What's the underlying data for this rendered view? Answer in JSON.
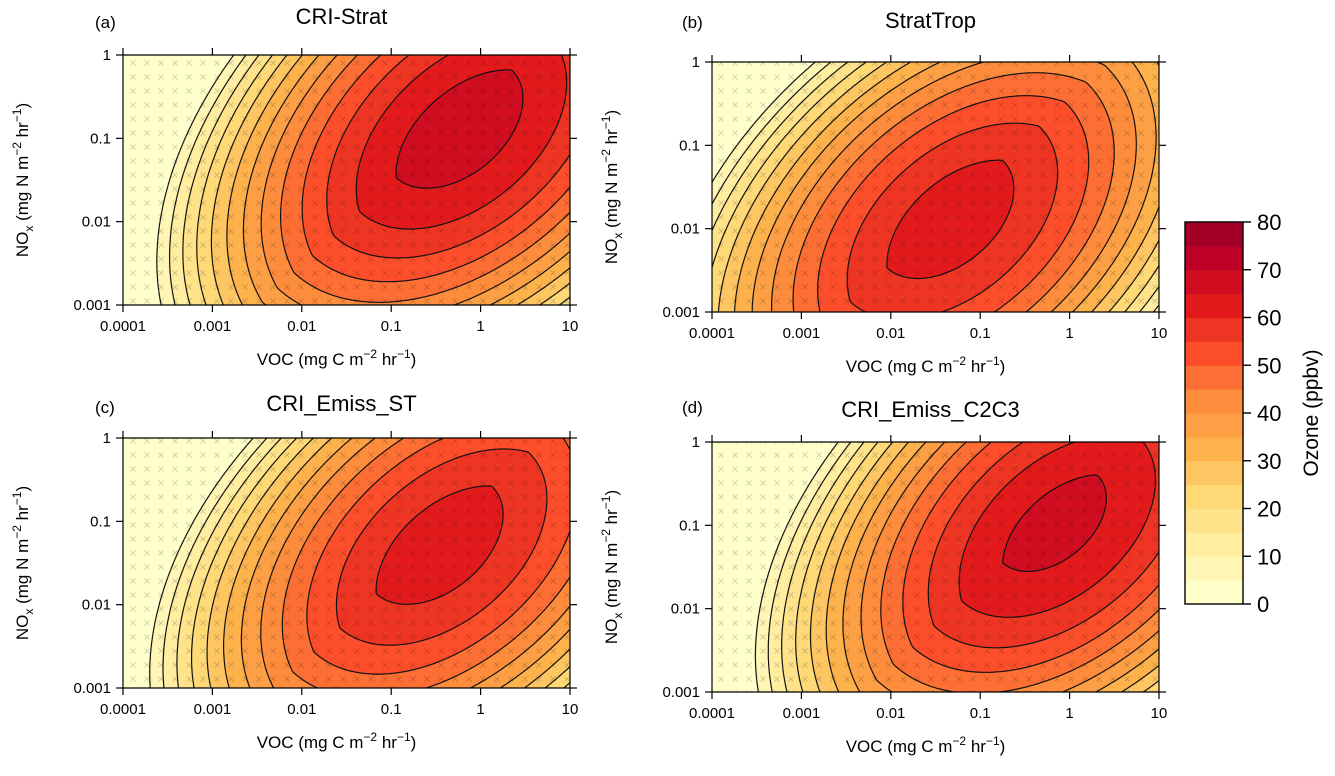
{
  "chart_data": {
    "type": "heatmap",
    "colorbar": {
      "label": "Ozone (ppbv)",
      "min": 0,
      "max": 80,
      "step": 5,
      "ticks": [
        "0",
        "10",
        "20",
        "30",
        "40",
        "50",
        "60",
        "70",
        "80"
      ],
      "colors": [
        "#FFFFCC",
        "#FFF6B5",
        "#FFEDA0",
        "#FEE38A",
        "#FED976",
        "#FEC662",
        "#FEB24C",
        "#FD9F44",
        "#FD8D3C",
        "#FC6E33",
        "#FC4E2A",
        "#EE3524",
        "#E31A1C",
        "#D00D21",
        "#BD0026",
        "#A20026"
      ]
    },
    "x_ticks": [
      "0.0001",
      "0.001",
      "0.01",
      "0.1",
      "1",
      "10"
    ],
    "y_ticks": [
      "0.001",
      "0.01",
      "0.1",
      "1"
    ],
    "xlim": [
      0.0001,
      10
    ],
    "ylim": [
      0.001,
      1
    ],
    "x_scale": "log",
    "y_scale": "log",
    "panels": [
      {
        "tag": "(a)",
        "title": "CRI-Strat",
        "xlabel": [
          "VOC (mg C m",
          "−2",
          " hr",
          "−1",
          ")"
        ],
        "ylabel": [
          "NO",
          "x",
          " (mg N m",
          "−2",
          " hr",
          "−1",
          ")"
        ],
        "peak_voc": 0.5,
        "peak_nox": 0.15,
        "peak_ozone": 68
      },
      {
        "tag": "(b)",
        "title": "StratTrop",
        "xlabel": [
          "VOC (mg C m",
          "−2",
          " hr",
          "−1",
          ")"
        ],
        "ylabel": [
          "NO",
          "x",
          " (mg N m",
          "−2",
          " hr",
          "−1",
          ")"
        ],
        "peak_voc": 0.04,
        "peak_nox": 0.015,
        "peak_ozone": 63
      },
      {
        "tag": "(c)",
        "title": "CRI_Emiss_ST",
        "xlabel": [
          "VOC (mg C m",
          "−2",
          " hr",
          "−1",
          ")"
        ],
        "ylabel": [
          "NO",
          "x",
          " (mg N m",
          "−2",
          " hr",
          "−1",
          ")"
        ],
        "peak_voc": 0.3,
        "peak_nox": 0.06,
        "peak_ozone": 63
      },
      {
        "tag": "(d)",
        "title": "CRI_Emiss_C2C3",
        "xlabel": [
          "VOC (mg C m",
          "−2",
          " hr",
          "−1",
          ")"
        ],
        "ylabel": [
          "NO",
          "x",
          " (mg N m",
          "−2",
          " hr",
          "−1",
          ")"
        ],
        "peak_voc": 0.6,
        "peak_nox": 0.12,
        "peak_ozone": 67
      }
    ]
  }
}
